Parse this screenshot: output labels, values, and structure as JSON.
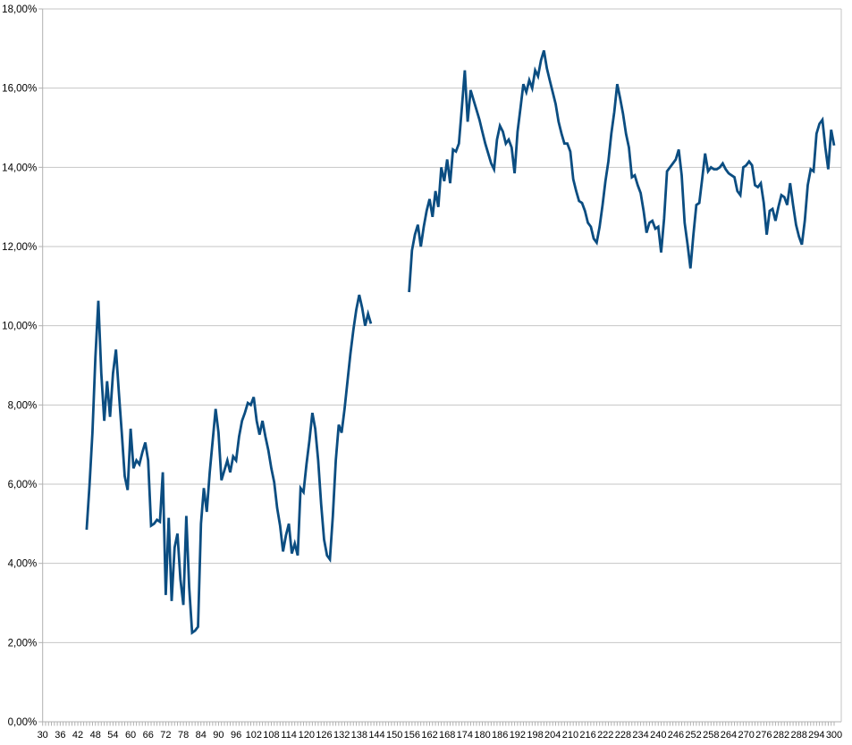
{
  "chart_data": {
    "type": "line",
    "title": "",
    "legend": "none",
    "grid": true,
    "colors": {
      "line": "#0b4d81",
      "grid": "#c6c6c6",
      "axis": "#b0b0b0",
      "text": "#000000",
      "background": "#ffffff"
    },
    "y_axis": {
      "min": 0,
      "max": 18,
      "step": 2,
      "unit": "%",
      "decimal_separator": ",",
      "labels": [
        "0,00%",
        "2,00%",
        "4,00%",
        "6,00%",
        "8,00%",
        "10,00%",
        "12,00%",
        "14,00%",
        "16,00%",
        "18,00%"
      ]
    },
    "x_axis": {
      "min": 30,
      "max": 300,
      "tick_step": 1,
      "label_step": 6,
      "labels": [
        "30",
        "36",
        "42",
        "48",
        "54",
        "60",
        "66",
        "72",
        "78",
        "84",
        "90",
        "96",
        "102",
        "108",
        "114",
        "120",
        "126",
        "132",
        "138",
        "144",
        "150",
        "156",
        "162",
        "168",
        "174",
        "180",
        "186",
        "192",
        "198",
        "204",
        "210",
        "216",
        "222",
        "228",
        "234",
        "240",
        "246",
        "252",
        "258",
        "264",
        "270",
        "276",
        "282",
        "288",
        "294",
        "300"
      ]
    },
    "series": [
      {
        "name": "series-1",
        "color": "#0b4d81",
        "segments": [
          [
            [
              45,
              4.85
            ],
            [
              46,
              6.0
            ],
            [
              47,
              7.3
            ],
            [
              48,
              9.2
            ],
            [
              49,
              10.63
            ],
            [
              50,
              8.8
            ],
            [
              51,
              7.6
            ],
            [
              52,
              8.6
            ],
            [
              53,
              7.7
            ],
            [
              54,
              8.8
            ],
            [
              55,
              9.4
            ],
            [
              56,
              8.3
            ],
            [
              57,
              7.3
            ],
            [
              58,
              6.2
            ],
            [
              59,
              5.85
            ],
            [
              60,
              7.4
            ],
            [
              61,
              6.4
            ],
            [
              62,
              6.6
            ],
            [
              63,
              6.5
            ],
            [
              64,
              6.8
            ],
            [
              65,
              7.05
            ],
            [
              66,
              6.6
            ],
            [
              67,
              4.95
            ],
            [
              68,
              5.0
            ],
            [
              69,
              5.1
            ],
            [
              70,
              5.05
            ],
            [
              71,
              6.3
            ],
            [
              72,
              3.2
            ],
            [
              73,
              5.15
            ],
            [
              74,
              3.05
            ],
            [
              75,
              4.4
            ],
            [
              76,
              4.75
            ],
            [
              77,
              3.6
            ],
            [
              78,
              2.95
            ],
            [
              79,
              5.2
            ],
            [
              80,
              3.4
            ],
            [
              81,
              2.25
            ],
            [
              82,
              2.3
            ],
            [
              83,
              2.4
            ],
            [
              84,
              5.0
            ],
            [
              85,
              5.9
            ],
            [
              86,
              5.3
            ],
            [
              87,
              6.3
            ],
            [
              88,
              7.1
            ],
            [
              89,
              7.9
            ],
            [
              90,
              7.3
            ],
            [
              91,
              6.1
            ],
            [
              92,
              6.35
            ],
            [
              93,
              6.6
            ],
            [
              94,
              6.3
            ],
            [
              95,
              6.7
            ],
            [
              96,
              6.6
            ],
            [
              97,
              7.2
            ],
            [
              98,
              7.6
            ],
            [
              99,
              7.8
            ],
            [
              100,
              8.05
            ],
            [
              101,
              8.0
            ],
            [
              102,
              8.2
            ],
            [
              103,
              7.6
            ],
            [
              104,
              7.25
            ],
            [
              105,
              7.6
            ],
            [
              106,
              7.2
            ],
            [
              107,
              6.85
            ],
            [
              108,
              6.4
            ],
            [
              109,
              6.05
            ],
            [
              110,
              5.4
            ],
            [
              111,
              4.95
            ],
            [
              112,
              4.3
            ],
            [
              113,
              4.7
            ],
            [
              114,
              5.0
            ],
            [
              115,
              4.25
            ],
            [
              116,
              4.5
            ],
            [
              117,
              4.2
            ],
            [
              118,
              5.9
            ],
            [
              119,
              5.8
            ],
            [
              120,
              6.5
            ],
            [
              121,
              7.1
            ],
            [
              122,
              7.8
            ],
            [
              123,
              7.4
            ],
            [
              124,
              6.6
            ],
            [
              125,
              5.5
            ],
            [
              126,
              4.6
            ],
            [
              127,
              4.2
            ],
            [
              128,
              4.1
            ],
            [
              129,
              5.2
            ],
            [
              130,
              6.6
            ],
            [
              131,
              7.5
            ],
            [
              132,
              7.3
            ],
            [
              133,
              7.9
            ],
            [
              134,
              8.6
            ],
            [
              135,
              9.3
            ],
            [
              136,
              9.9
            ],
            [
              137,
              10.4
            ],
            [
              138,
              10.78
            ],
            [
              139,
              10.45
            ],
            [
              140,
              10.0
            ],
            [
              141,
              10.3
            ],
            [
              142,
              10.05
            ]
          ],
          [
            [
              155,
              10.85
            ],
            [
              156,
              11.9
            ],
            [
              157,
              12.3
            ],
            [
              158,
              12.55
            ],
            [
              159,
              12.0
            ],
            [
              160,
              12.5
            ],
            [
              161,
              12.9
            ],
            [
              162,
              13.2
            ],
            [
              163,
              12.75
            ],
            [
              164,
              13.4
            ],
            [
              165,
              13.0
            ],
            [
              166,
              14.0
            ],
            [
              167,
              13.65
            ],
            [
              168,
              14.2
            ],
            [
              169,
              13.6
            ],
            [
              170,
              14.45
            ],
            [
              171,
              14.4
            ],
            [
              172,
              14.6
            ],
            [
              173,
              15.5
            ],
            [
              174,
              16.45
            ],
            [
              175,
              15.15
            ],
            [
              176,
              15.95
            ],
            [
              177,
              15.7
            ],
            [
              178,
              15.45
            ],
            [
              179,
              15.2
            ],
            [
              180,
              14.9
            ],
            [
              181,
              14.6
            ],
            [
              182,
              14.35
            ],
            [
              183,
              14.1
            ],
            [
              184,
              13.95
            ],
            [
              185,
              14.7
            ],
            [
              186,
              15.05
            ],
            [
              187,
              14.9
            ],
            [
              188,
              14.6
            ],
            [
              189,
              14.7
            ],
            [
              190,
              14.5
            ],
            [
              191,
              13.85
            ],
            [
              192,
              14.9
            ],
            [
              193,
              15.5
            ],
            [
              194,
              16.1
            ],
            [
              195,
              15.9
            ],
            [
              196,
              16.2
            ],
            [
              197,
              16.0
            ],
            [
              198,
              16.45
            ],
            [
              199,
              16.3
            ],
            [
              200,
              16.7
            ],
            [
              201,
              16.95
            ],
            [
              202,
              16.5
            ],
            [
              203,
              16.2
            ],
            [
              204,
              15.9
            ],
            [
              205,
              15.6
            ],
            [
              206,
              15.15
            ],
            [
              207,
              14.85
            ],
            [
              208,
              14.6
            ],
            [
              209,
              14.6
            ],
            [
              210,
              14.4
            ],
            [
              211,
              13.7
            ],
            [
              212,
              13.4
            ],
            [
              213,
              13.15
            ],
            [
              214,
              13.1
            ],
            [
              215,
              12.9
            ],
            [
              216,
              12.6
            ],
            [
              217,
              12.5
            ],
            [
              218,
              12.2
            ],
            [
              219,
              12.1
            ],
            [
              220,
              12.5
            ],
            [
              221,
              13.05
            ],
            [
              222,
              13.65
            ],
            [
              223,
              14.15
            ],
            [
              224,
              14.85
            ],
            [
              225,
              15.4
            ],
            [
              226,
              16.1
            ],
            [
              227,
              15.75
            ],
            [
              228,
              15.35
            ],
            [
              229,
              14.85
            ],
            [
              230,
              14.5
            ],
            [
              231,
              13.75
            ],
            [
              232,
              13.8
            ],
            [
              233,
              13.55
            ],
            [
              234,
              13.35
            ],
            [
              235,
              12.9
            ],
            [
              236,
              12.35
            ],
            [
              237,
              12.6
            ],
            [
              238,
              12.65
            ],
            [
              239,
              12.45
            ],
            [
              240,
              12.5
            ],
            [
              241,
              11.85
            ],
            [
              242,
              12.7
            ],
            [
              243,
              13.9
            ],
            [
              244,
              14.0
            ],
            [
              245,
              14.1
            ],
            [
              246,
              14.2
            ],
            [
              247,
              14.45
            ],
            [
              248,
              13.8
            ],
            [
              249,
              12.6
            ],
            [
              250,
              12.05
            ],
            [
              251,
              11.45
            ],
            [
              252,
              12.3
            ],
            [
              253,
              13.05
            ],
            [
              254,
              13.1
            ],
            [
              255,
              13.7
            ],
            [
              256,
              14.35
            ],
            [
              257,
              13.9
            ],
            [
              258,
              14.0
            ],
            [
              259,
              13.95
            ],
            [
              260,
              13.95
            ],
            [
              261,
              14.0
            ],
            [
              262,
              14.1
            ],
            [
              263,
              13.95
            ],
            [
              264,
              13.85
            ],
            [
              265,
              13.8
            ],
            [
              266,
              13.75
            ],
            [
              267,
              13.4
            ],
            [
              268,
              13.3
            ],
            [
              269,
              14.0
            ],
            [
              270,
              14.05
            ],
            [
              271,
              14.15
            ],
            [
              272,
              14.05
            ],
            [
              273,
              13.55
            ],
            [
              274,
              13.5
            ],
            [
              275,
              13.6
            ],
            [
              276,
              13.1
            ],
            [
              277,
              12.3
            ],
            [
              278,
              12.9
            ],
            [
              279,
              12.95
            ],
            [
              280,
              12.65
            ],
            [
              281,
              13.0
            ],
            [
              282,
              13.3
            ],
            [
              283,
              13.25
            ],
            [
              284,
              13.05
            ],
            [
              285,
              13.6
            ],
            [
              286,
              13.05
            ],
            [
              287,
              12.55
            ],
            [
              288,
              12.25
            ],
            [
              289,
              12.05
            ],
            [
              290,
              12.65
            ],
            [
              291,
              13.55
            ],
            [
              292,
              13.95
            ],
            [
              293,
              13.9
            ],
            [
              294,
              14.85
            ],
            [
              295,
              15.1
            ],
            [
              296,
              15.2
            ],
            [
              297,
              14.5
            ],
            [
              298,
              13.95
            ],
            [
              299,
              14.95
            ],
            [
              300,
              14.55
            ]
          ]
        ]
      }
    ]
  }
}
